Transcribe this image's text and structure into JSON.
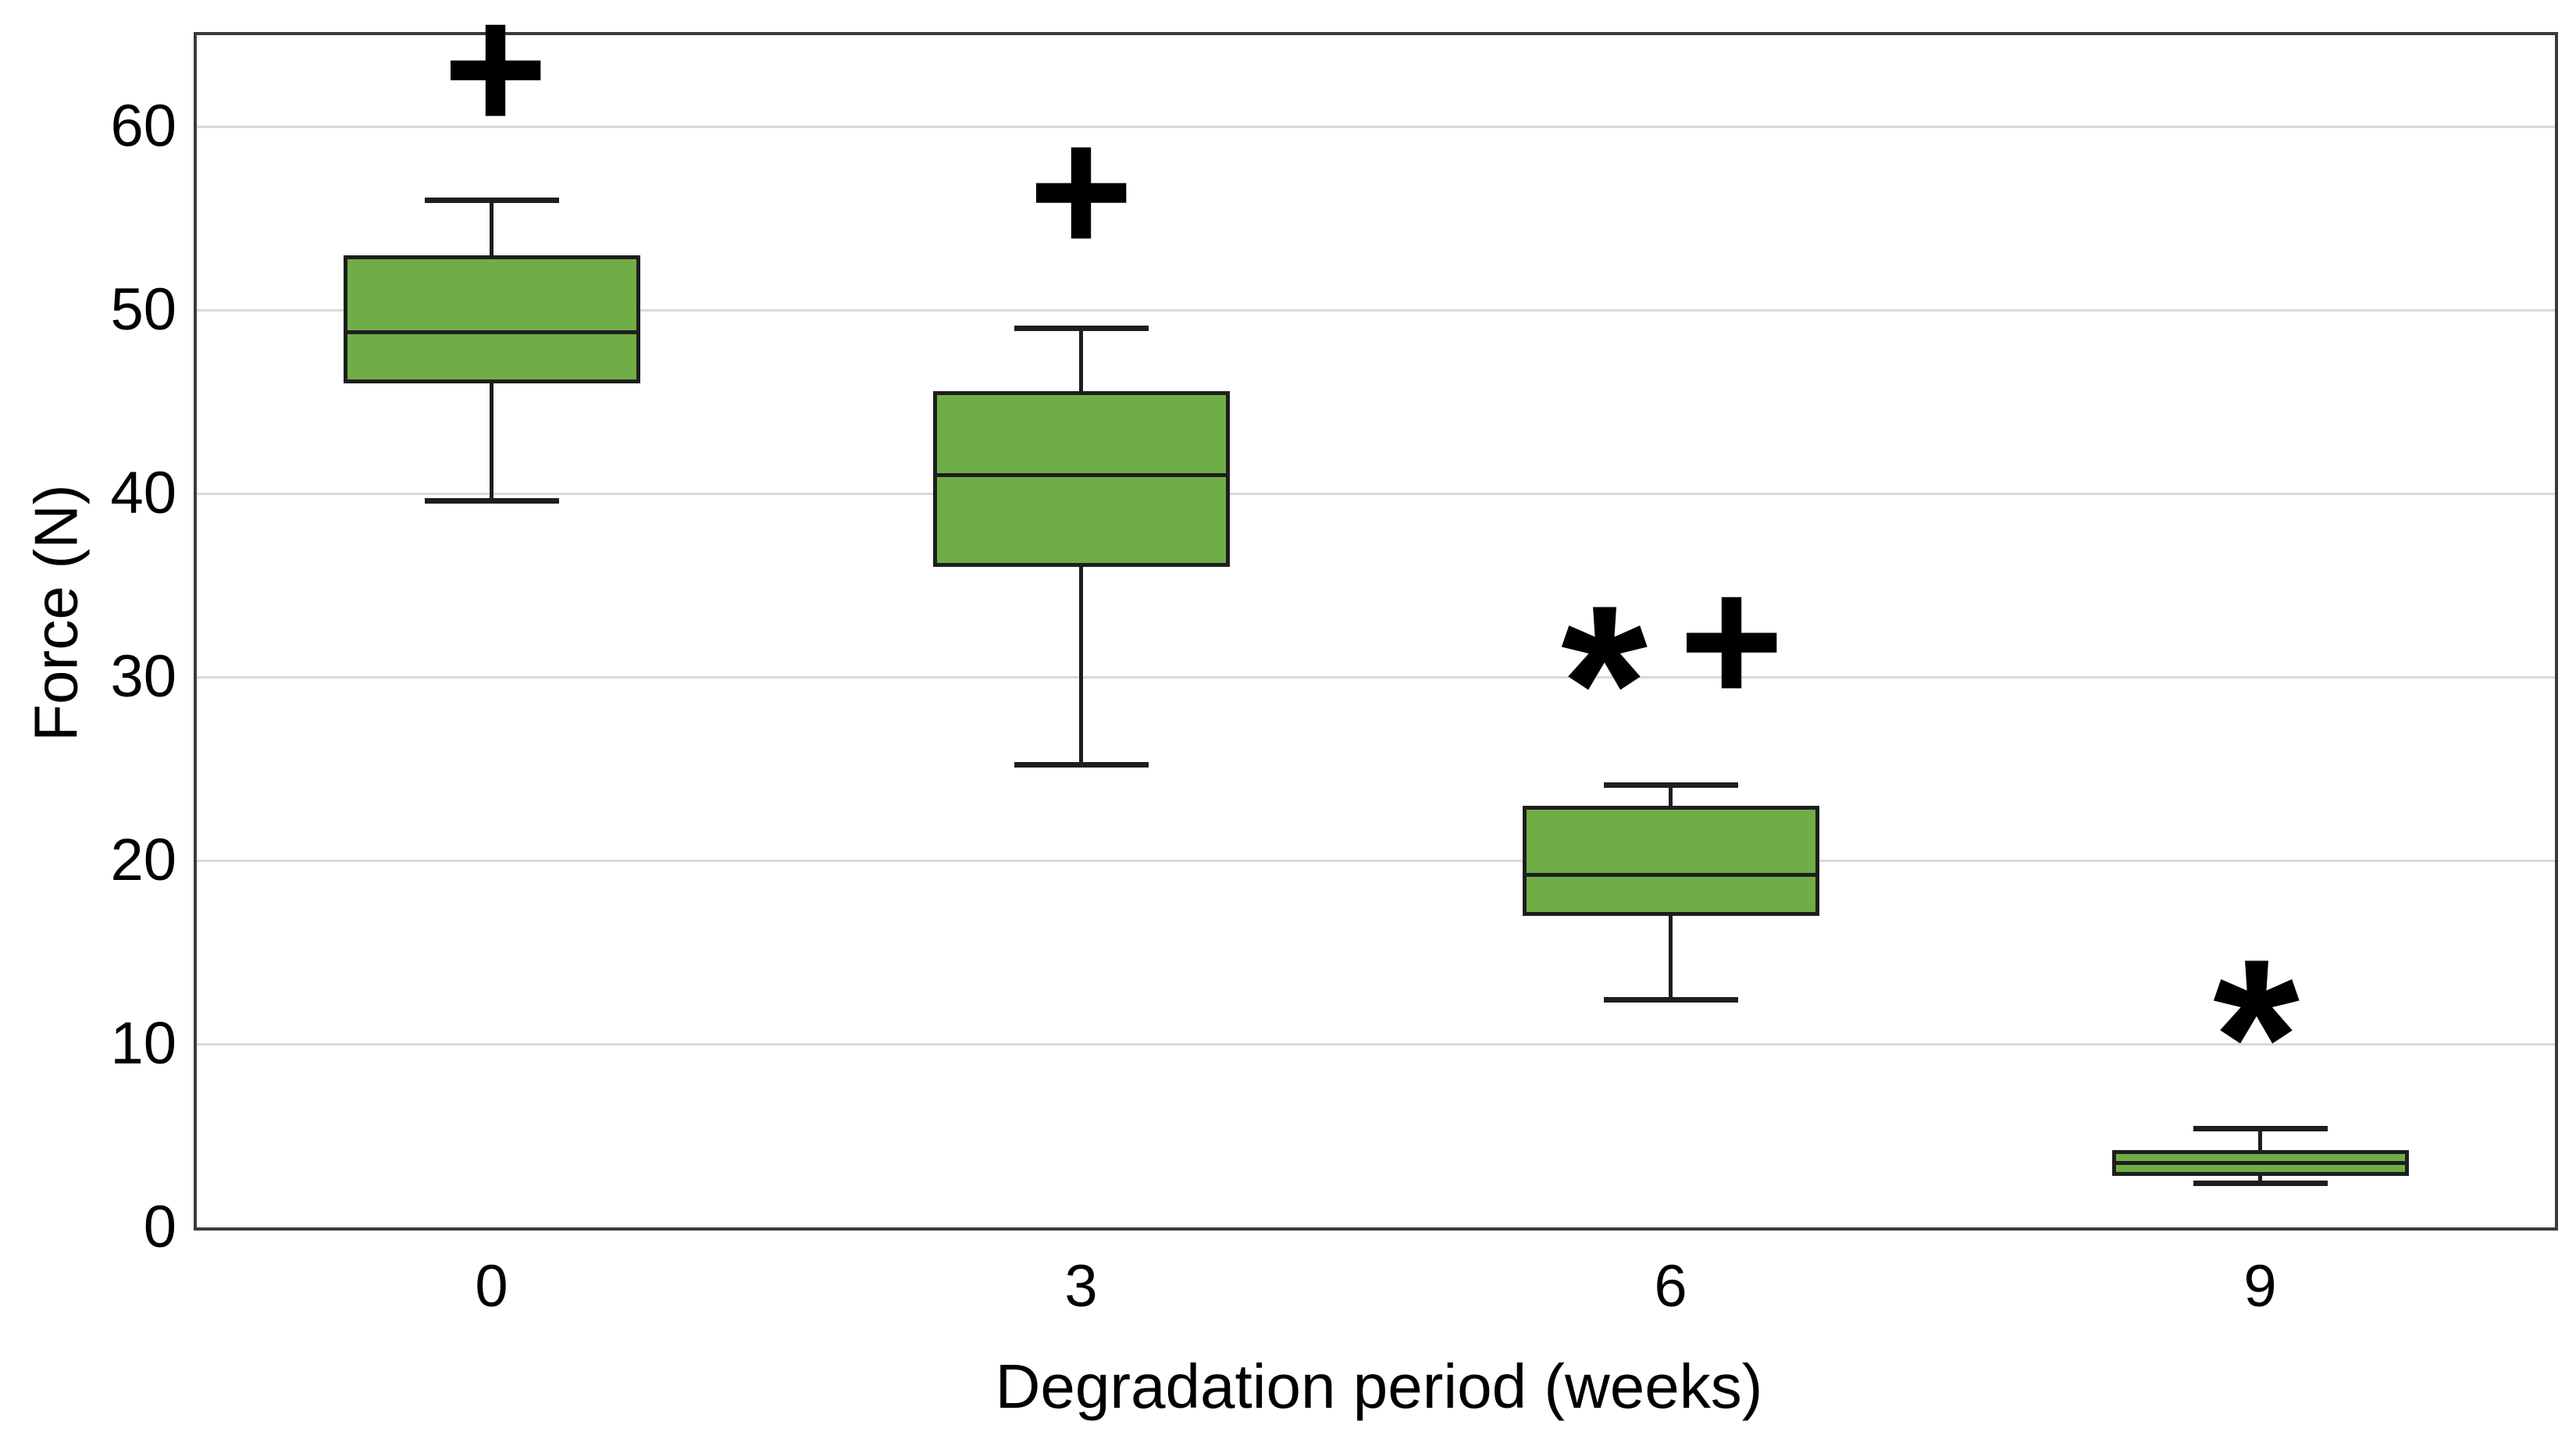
{
  "chart_data": {
    "type": "boxplot",
    "title": "",
    "xlabel": "Degradation period (weeks)",
    "ylabel": "Force (N)",
    "categories": [
      "0",
      "3",
      "6",
      "9"
    ],
    "y_axis": {
      "min": 0,
      "max": 65,
      "tick_step": 10,
      "ticks": [
        0,
        10,
        20,
        30,
        40,
        50,
        60
      ],
      "tick_labels": [
        "0",
        "10",
        "20",
        "30",
        "40",
        "50",
        "60"
      ]
    },
    "grid": "horizontal",
    "legend": "none",
    "series": [
      {
        "category": "0",
        "whisker_low": 39.6,
        "q1": 46.0,
        "median": 48.8,
        "q3": 53.0,
        "whisker_high": 56.0,
        "annotations": [
          {
            "symbol": "+",
            "value": 62.4,
            "offset_x": 5
          }
        ]
      },
      {
        "category": "3",
        "whisker_low": 25.2,
        "q1": 36.0,
        "median": 41.0,
        "q3": 45.6,
        "whisker_high": 49.0,
        "annotations": [
          {
            "symbol": "+",
            "value": 55.7,
            "offset_x": 0
          }
        ]
      },
      {
        "category": "6",
        "whisker_low": 12.4,
        "q1": 17.0,
        "median": 19.2,
        "q3": 23.0,
        "whisker_high": 24.1,
        "annotations": [
          {
            "symbol": "*",
            "value": 31.2,
            "offset_x": -85
          },
          {
            "symbol": "+",
            "value": 31.2,
            "offset_x": 78
          }
        ]
      },
      {
        "category": "9",
        "whisker_low": 2.4,
        "q1": 2.8,
        "median": 3.5,
        "q3": 4.2,
        "whisker_high": 5.4,
        "annotations": [
          {
            "symbol": "*",
            "value": 11.9,
            "offset_x": -5
          }
        ]
      }
    ],
    "style": {
      "box_fill": "#70AD47",
      "box_border": "#1E1E1E",
      "whisker_color": "#1E1E1E",
      "median_color": "#1E1E1E",
      "gridline_color": "#D9D9D9",
      "axis_border_color": "#3B3B3B",
      "annotation_color": "#000000",
      "text_color": "#000000",
      "background": "#FFFFFF"
    }
  }
}
